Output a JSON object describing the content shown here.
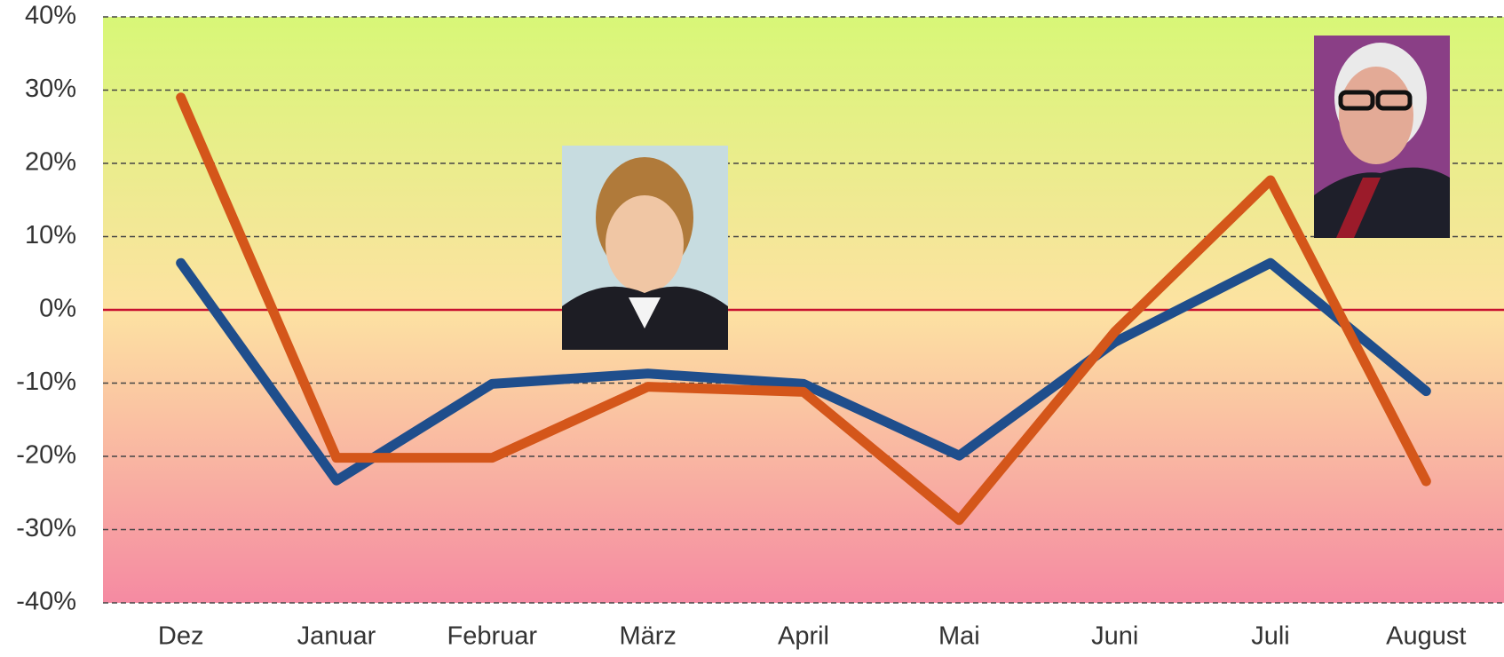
{
  "chart_data": {
    "type": "line",
    "categories": [
      "Dez",
      "Januar",
      "Februar",
      "März",
      "April",
      "Mai",
      "Juni",
      "Juli",
      "August"
    ],
    "series": [
      {
        "color": "#1f4e8c",
        "values": [
          6.4,
          -23.3,
          -10.1,
          -8.7,
          -10.1,
          -19.9,
          -4.4,
          6.4,
          -11.1
        ]
      },
      {
        "color": "#d4561a",
        "values": [
          29.0,
          -20.2,
          -20.2,
          -10.5,
          -11.2,
          -28.7,
          -3.0,
          17.7,
          -23.4
        ]
      }
    ],
    "ylim": [
      -40,
      40
    ],
    "yticks": [
      {
        "value": -40,
        "label": "-40%"
      },
      {
        "value": -30,
        "label": "-30%"
      },
      {
        "value": -20,
        "label": "-20%"
      },
      {
        "value": -10,
        "label": "-10%"
      },
      {
        "value": 0,
        "label": "0%"
      },
      {
        "value": 10,
        "label": "10%"
      },
      {
        "value": 20,
        "label": "20%"
      },
      {
        "value": 30,
        "label": "30%"
      },
      {
        "value": 40,
        "label": "40%"
      }
    ],
    "grid": true,
    "zero_line_color": "#c8102e"
  }
}
